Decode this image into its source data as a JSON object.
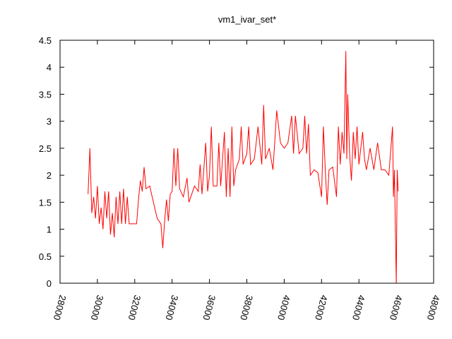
{
  "chart_data": {
    "type": "line",
    "title": "vm1_ivar_set*",
    "xlim": [
      28000,
      48000
    ],
    "xticks": [
      28000,
      30000,
      32000,
      34000,
      36000,
      38000,
      40000,
      42000,
      44000,
      46000,
      48000
    ],
    "ylim": [
      0,
      4.5
    ],
    "yticks": [
      0,
      0.5,
      1,
      1.5,
      2,
      2.5,
      3,
      3.5,
      4,
      4.5
    ],
    "series": [
      {
        "color": "#ff0000",
        "x": [
          29500,
          29600,
          29700,
          29800,
          29900,
          30000,
          30100,
          30200,
          30300,
          30400,
          30500,
          30600,
          30700,
          30800,
          30900,
          31000,
          31100,
          31200,
          31300,
          31400,
          31500,
          31600,
          31700,
          31800,
          32000,
          32100,
          32200,
          32300,
          32400,
          32500,
          32600,
          32800,
          33000,
          33200,
          33400,
          33500,
          33600,
          33700,
          33800,
          33900,
          34000,
          34100,
          34200,
          34300,
          34400,
          34600,
          34800,
          34900,
          35000,
          35200,
          35400,
          35500,
          35600,
          35800,
          35900,
          36000,
          36100,
          36200,
          36400,
          36500,
          36600,
          36800,
          36900,
          37000,
          37100,
          37200,
          37300,
          37400,
          37600,
          37700,
          37800,
          38000,
          38100,
          38200,
          38400,
          38600,
          38800,
          38900,
          39000,
          39200,
          39400,
          39600,
          39800,
          40000,
          40200,
          40400,
          40500,
          40600,
          40800,
          41000,
          41100,
          41200,
          41300,
          41400,
          41600,
          41800,
          42000,
          42100,
          42200,
          42300,
          42400,
          42600,
          42800,
          42900,
          43000,
          43100,
          43200,
          43300,
          43350,
          43400,
          43500,
          43600,
          43700,
          43800,
          43900,
          44000,
          44200,
          44300,
          44400,
          44600,
          44800,
          45000,
          45200,
          45400,
          45600,
          45800,
          45850,
          45900,
          46000,
          46050,
          46100
        ],
        "values": [
          1.65,
          2.5,
          1.3,
          1.6,
          1.2,
          1.8,
          1.1,
          1.4,
          1.0,
          1.7,
          1.2,
          1.7,
          0.9,
          1.3,
          0.85,
          1.6,
          1.1,
          1.7,
          1.1,
          1.75,
          1.1,
          1.6,
          1.1,
          1.1,
          1.1,
          1.1,
          1.55,
          1.9,
          1.7,
          2.15,
          1.75,
          1.8,
          1.5,
          1.2,
          1.1,
          0.65,
          1.15,
          1.55,
          1.15,
          1.65,
          1.7,
          2.5,
          1.8,
          2.5,
          1.75,
          1.6,
          1.95,
          1.5,
          1.6,
          1.8,
          1.7,
          2.2,
          1.65,
          2.6,
          1.7,
          2.0,
          2.9,
          1.8,
          1.8,
          2.6,
          1.8,
          2.8,
          1.6,
          2.5,
          1.6,
          2.9,
          1.8,
          2.1,
          2.3,
          2.9,
          2.2,
          2.4,
          2.9,
          2.2,
          2.3,
          2.9,
          2.2,
          3.3,
          2.3,
          2.5,
          2.1,
          3.2,
          2.6,
          2.5,
          2.6,
          3.1,
          2.4,
          3.1,
          2.4,
          2.5,
          3.1,
          2.4,
          2.95,
          2.0,
          2.1,
          2.05,
          1.6,
          2.9,
          2.1,
          1.45,
          2.1,
          2.15,
          1.6,
          2.9,
          2.2,
          2.8,
          2.4,
          4.3,
          2.3,
          3.5,
          2.4,
          1.9,
          2.8,
          2.3,
          2.9,
          2.2,
          2.8,
          2.3,
          2.1,
          2.5,
          2.1,
          2.6,
          2.1,
          2.1,
          2.0,
          2.9,
          1.6,
          2.1,
          0.0,
          2.1,
          1.7
        ]
      }
    ]
  }
}
